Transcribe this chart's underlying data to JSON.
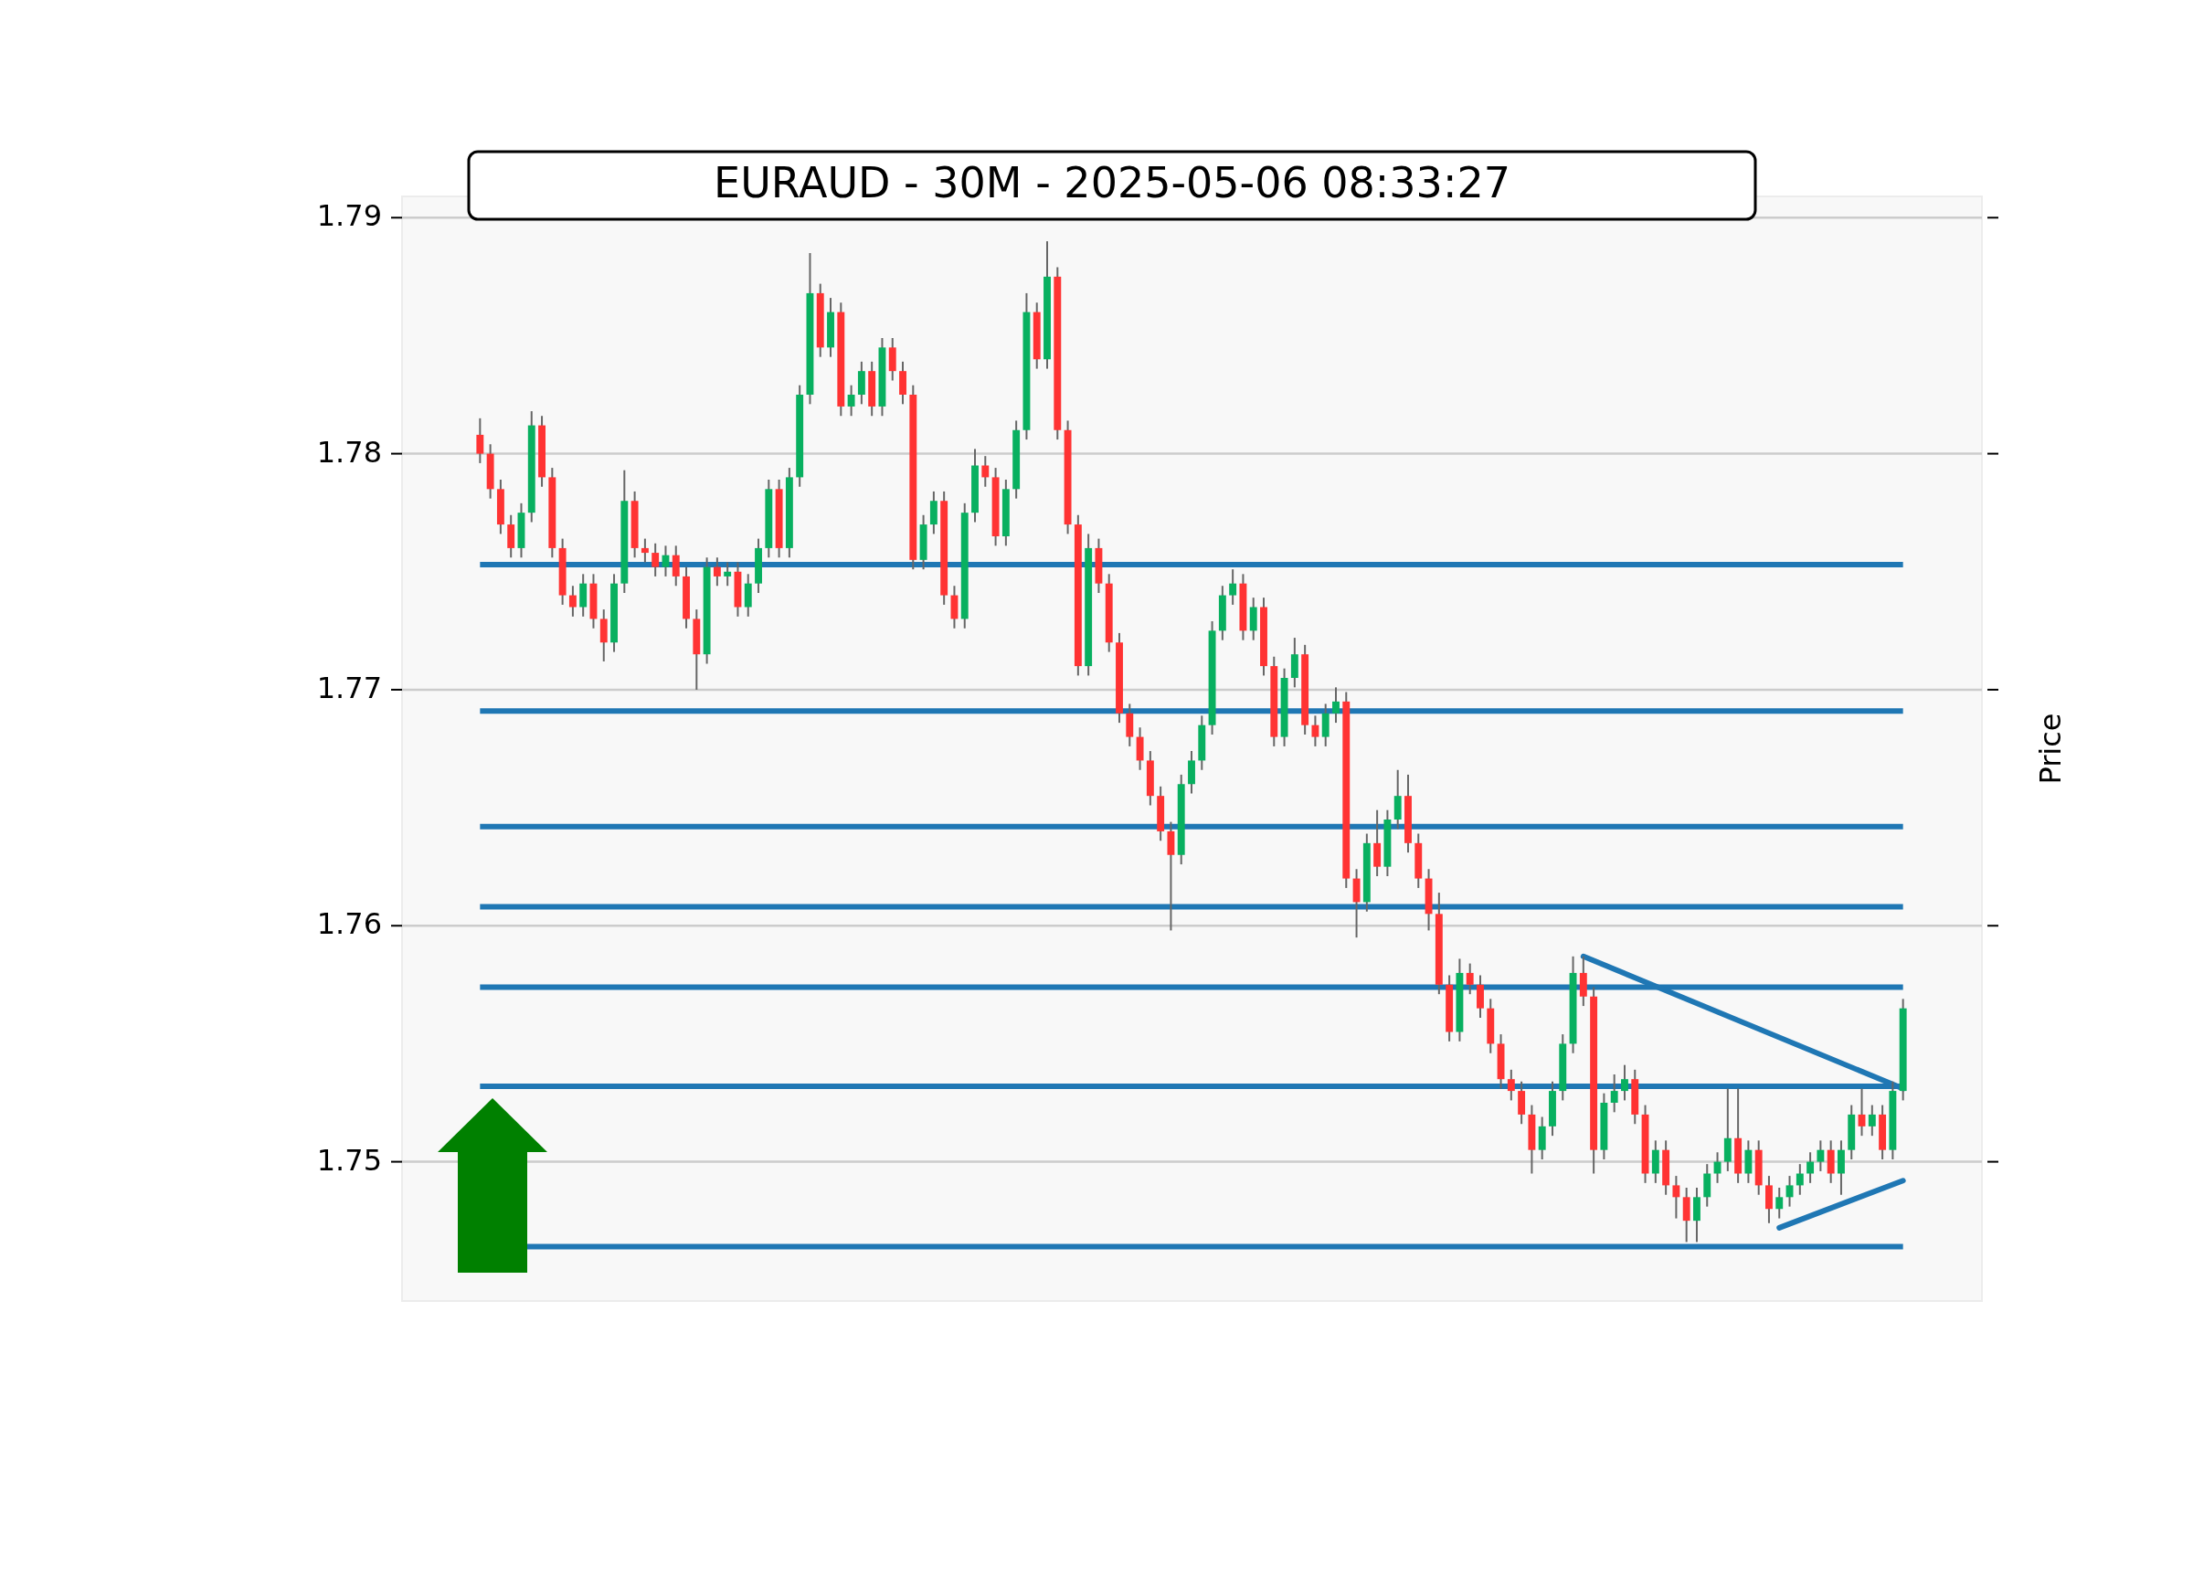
{
  "chart_data": {
    "type": "candlestick",
    "title": "EURAUD - 30M - 2025-05-06 08:33:27",
    "ylabel": "Price",
    "ylim": [
      1.7441,
      1.7909
    ],
    "yticks": [
      1.75,
      1.76,
      1.77,
      1.78,
      1.79
    ],
    "grid": "y",
    "categories": [
      null,
      null,
      null,
      null,
      null,
      null,
      null,
      null,
      null,
      null,
      null,
      null,
      null,
      null,
      null,
      null,
      null,
      null,
      null,
      null,
      null,
      null,
      null,
      null,
      null,
      null,
      null,
      null,
      null,
      null,
      null,
      null,
      null,
      null,
      null,
      null,
      null,
      null,
      null,
      null,
      null,
      null,
      null,
      null,
      null,
      null,
      null,
      null,
      null,
      null,
      null,
      null,
      null,
      null,
      null,
      null,
      null,
      null,
      null,
      null,
      null,
      null,
      null,
      null,
      null,
      null,
      null,
      null,
      null,
      null,
      null,
      null,
      null,
      null,
      null,
      null,
      null,
      null,
      null,
      null,
      null,
      null,
      null,
      null,
      null,
      null,
      null,
      null,
      null,
      null,
      null,
      null,
      null,
      null,
      null,
      null,
      null,
      null,
      null,
      null,
      null,
      null,
      null,
      null,
      null,
      null,
      null,
      null,
      null,
      null,
      null,
      null,
      null,
      null,
      null,
      null,
      null,
      null,
      null,
      null,
      null,
      null,
      null,
      null,
      null,
      null,
      null,
      null,
      null,
      null,
      null,
      null,
      null,
      null,
      null,
      null,
      null,
      null,
      null
    ],
    "ohlc": [
      [
        1.7808,
        1.7815,
        1.7796,
        1.78
      ],
      [
        1.78,
        1.7804,
        1.7781,
        1.7785
      ],
      [
        1.7785,
        1.7789,
        1.7766,
        1.777
      ],
      [
        1.777,
        1.7774,
        1.7756,
        1.776
      ],
      [
        1.776,
        1.7779,
        1.7756,
        1.7775
      ],
      [
        1.7775,
        1.7818,
        1.7771,
        1.7812
      ],
      [
        1.7812,
        1.7816,
        1.7786,
        1.779
      ],
      [
        1.779,
        1.7794,
        1.7756,
        1.776
      ],
      [
        1.776,
        1.7764,
        1.7736,
        1.774
      ],
      [
        1.774,
        1.7744,
        1.7731,
        1.7735
      ],
      [
        1.7735,
        1.7749,
        1.7731,
        1.7745
      ],
      [
        1.7745,
        1.7749,
        1.7726,
        1.773
      ],
      [
        1.773,
        1.7734,
        1.7712,
        1.772
      ],
      [
        1.772,
        1.7749,
        1.7716,
        1.7745
      ],
      [
        1.7745,
        1.7793,
        1.7741,
        1.778
      ],
      [
        1.778,
        1.7784,
        1.7756,
        1.776
      ],
      [
        1.776,
        1.7764,
        1.7754,
        1.7758
      ],
      [
        1.7758,
        1.7762,
        1.7748,
        1.7752
      ],
      [
        1.7752,
        1.7761,
        1.7748,
        1.7757
      ],
      [
        1.7757,
        1.7761,
        1.7744,
        1.7748
      ],
      [
        1.7748,
        1.7752,
        1.7726,
        1.773
      ],
      [
        1.773,
        1.7734,
        1.77,
        1.7715
      ],
      [
        1.7715,
        1.7756,
        1.7711,
        1.7752
      ],
      [
        1.7752,
        1.7756,
        1.7744,
        1.7748
      ],
      [
        1.7748,
        1.7754,
        1.7744,
        1.775
      ],
      [
        1.775,
        1.7754,
        1.7731,
        1.7735
      ],
      [
        1.7735,
        1.7749,
        1.7731,
        1.7745
      ],
      [
        1.7745,
        1.7764,
        1.7741,
        1.776
      ],
      [
        1.776,
        1.7789,
        1.7756,
        1.7785
      ],
      [
        1.7785,
        1.7789,
        1.7756,
        1.776
      ],
      [
        1.776,
        1.7794,
        1.7756,
        1.779
      ],
      [
        1.779,
        1.7829,
        1.7786,
        1.7825
      ],
      [
        1.7825,
        1.7885,
        1.7821,
        1.7868
      ],
      [
        1.7868,
        1.7872,
        1.7841,
        1.7845
      ],
      [
        1.7845,
        1.7866,
        1.7841,
        1.786
      ],
      [
        1.786,
        1.7864,
        1.7816,
        1.782
      ],
      [
        1.782,
        1.7829,
        1.7816,
        1.7825
      ],
      [
        1.7825,
        1.7839,
        1.7821,
        1.7835
      ],
      [
        1.7835,
        1.7839,
        1.7816,
        1.782
      ],
      [
        1.782,
        1.7849,
        1.7816,
        1.7845
      ],
      [
        1.7845,
        1.7849,
        1.7831,
        1.7835
      ],
      [
        1.7835,
        1.7839,
        1.7821,
        1.7825
      ],
      [
        1.7825,
        1.7829,
        1.7751,
        1.7755
      ],
      [
        1.7755,
        1.7774,
        1.7751,
        1.777
      ],
      [
        1.777,
        1.7784,
        1.7766,
        1.778
      ],
      [
        1.778,
        1.7784,
        1.7736,
        1.774
      ],
      [
        1.774,
        1.7744,
        1.7726,
        1.773
      ],
      [
        1.773,
        1.7779,
        1.7726,
        1.7775
      ],
      [
        1.7775,
        1.7802,
        1.7771,
        1.7795
      ],
      [
        1.7795,
        1.7799,
        1.7786,
        1.779
      ],
      [
        1.779,
        1.7794,
        1.7761,
        1.7765
      ],
      [
        1.7765,
        1.7789,
        1.7761,
        1.7785
      ],
      [
        1.7785,
        1.7814,
        1.7781,
        1.781
      ],
      [
        1.781,
        1.7868,
        1.7806,
        1.786
      ],
      [
        1.786,
        1.7864,
        1.7836,
        1.784
      ],
      [
        1.784,
        1.789,
        1.7836,
        1.7875
      ],
      [
        1.7875,
        1.7879,
        1.7806,
        1.781
      ],
      [
        1.781,
        1.7814,
        1.7766,
        1.777
      ],
      [
        1.777,
        1.7774,
        1.7706,
        1.771
      ],
      [
        1.771,
        1.7766,
        1.7706,
        1.776
      ],
      [
        1.776,
        1.7764,
        1.7741,
        1.7745
      ],
      [
        1.7745,
        1.7749,
        1.7716,
        1.772
      ],
      [
        1.772,
        1.7724,
        1.7686,
        1.769
      ],
      [
        1.769,
        1.7694,
        1.7676,
        1.768
      ],
      [
        1.768,
        1.7684,
        1.7666,
        1.767
      ],
      [
        1.767,
        1.7674,
        1.7651,
        1.7655
      ],
      [
        1.7655,
        1.7659,
        1.7636,
        1.764
      ],
      [
        1.764,
        1.7644,
        1.7598,
        1.763
      ],
      [
        1.763,
        1.7664,
        1.7626,
        1.766
      ],
      [
        1.766,
        1.7674,
        1.7656,
        1.767
      ],
      [
        1.767,
        1.7689,
        1.7666,
        1.7685
      ],
      [
        1.7685,
        1.7729,
        1.7681,
        1.7725
      ],
      [
        1.7725,
        1.7744,
        1.7721,
        1.774
      ],
      [
        1.774,
        1.7751,
        1.7736,
        1.7745
      ],
      [
        1.7745,
        1.7749,
        1.7721,
        1.7725
      ],
      [
        1.7725,
        1.7739,
        1.7721,
        1.7735
      ],
      [
        1.7735,
        1.7739,
        1.7706,
        1.771
      ],
      [
        1.771,
        1.7714,
        1.7676,
        1.768
      ],
      [
        1.768,
        1.7709,
        1.7676,
        1.7705
      ],
      [
        1.7705,
        1.7722,
        1.7701,
        1.7715
      ],
      [
        1.7715,
        1.7719,
        1.7681,
        1.7685
      ],
      [
        1.7685,
        1.7689,
        1.7676,
        1.768
      ],
      [
        1.768,
        1.7694,
        1.7676,
        1.769
      ],
      [
        1.769,
        1.7701,
        1.7686,
        1.7695
      ],
      [
        1.7695,
        1.7699,
        1.7616,
        1.762
      ],
      [
        1.762,
        1.7624,
        1.7595,
        1.761
      ],
      [
        1.761,
        1.7639,
        1.7606,
        1.7635
      ],
      [
        1.7635,
        1.7649,
        1.7621,
        1.7625
      ],
      [
        1.7625,
        1.7649,
        1.7621,
        1.7645
      ],
      [
        1.7645,
        1.7666,
        1.7641,
        1.7655
      ],
      [
        1.7655,
        1.7664,
        1.7631,
        1.7635
      ],
      [
        1.7635,
        1.7639,
        1.7616,
        1.762
      ],
      [
        1.762,
        1.7624,
        1.7598,
        1.7605
      ],
      [
        1.7605,
        1.7614,
        1.7571,
        1.7575
      ],
      [
        1.7575,
        1.7579,
        1.7551,
        1.7555
      ],
      [
        1.7555,
        1.7586,
        1.7551,
        1.758
      ],
      [
        1.758,
        1.7584,
        1.7571,
        1.7575
      ],
      [
        1.7575,
        1.7579,
        1.7561,
        1.7565
      ],
      [
        1.7565,
        1.7569,
        1.7546,
        1.755
      ],
      [
        1.755,
        1.7554,
        1.7531,
        1.7535
      ],
      [
        1.7535,
        1.7539,
        1.7526,
        1.753
      ],
      [
        1.753,
        1.7534,
        1.7516,
        1.752
      ],
      [
        1.752,
        1.7524,
        1.7495,
        1.7505
      ],
      [
        1.7505,
        1.7519,
        1.7501,
        1.7515
      ],
      [
        1.7515,
        1.7534,
        1.7511,
        1.753
      ],
      [
        1.753,
        1.7554,
        1.7526,
        1.755
      ],
      [
        1.755,
        1.7587,
        1.7546,
        1.758
      ],
      [
        1.758,
        1.7587,
        1.7566,
        1.757
      ],
      [
        1.757,
        1.7574,
        1.7495,
        1.7505
      ],
      [
        1.7505,
        1.7529,
        1.7501,
        1.7525
      ],
      [
        1.7525,
        1.7537,
        1.7521,
        1.753
      ],
      [
        1.753,
        1.7541,
        1.7526,
        1.7535
      ],
      [
        1.7535,
        1.7539,
        1.7516,
        1.752
      ],
      [
        1.752,
        1.7524,
        1.7491,
        1.7495
      ],
      [
        1.7495,
        1.7509,
        1.7491,
        1.7505
      ],
      [
        1.7505,
        1.7509,
        1.7486,
        1.749
      ],
      [
        1.749,
        1.7494,
        1.7476,
        1.7485
      ],
      [
        1.7485,
        1.7489,
        1.7466,
        1.7475
      ],
      [
        1.7475,
        1.7489,
        1.7466,
        1.7485
      ],
      [
        1.7485,
        1.7499,
        1.7481,
        1.7495
      ],
      [
        1.7495,
        1.7504,
        1.7491,
        1.75
      ],
      [
        1.75,
        1.7531,
        1.7496,
        1.751
      ],
      [
        1.751,
        1.7531,
        1.7491,
        1.7495
      ],
      [
        1.7495,
        1.7509,
        1.7491,
        1.7505
      ],
      [
        1.7505,
        1.7509,
        1.7486,
        1.749
      ],
      [
        1.749,
        1.7494,
        1.7474,
        1.748
      ],
      [
        1.748,
        1.7489,
        1.7476,
        1.7485
      ],
      [
        1.7485,
        1.7494,
        1.7481,
        1.749
      ],
      [
        1.749,
        1.7499,
        1.7486,
        1.7495
      ],
      [
        1.7495,
        1.7504,
        1.7491,
        1.75
      ],
      [
        1.75,
        1.7509,
        1.7496,
        1.7505
      ],
      [
        1.7505,
        1.7509,
        1.7491,
        1.7495
      ],
      [
        1.7495,
        1.7509,
        1.7486,
        1.7505
      ],
      [
        1.7505,
        1.7524,
        1.7501,
        1.752
      ],
      [
        1.752,
        1.7531,
        1.7511,
        1.7515
      ],
      [
        1.7515,
        1.7524,
        1.7511,
        1.752
      ],
      [
        1.752,
        1.7524,
        1.7501,
        1.7505
      ],
      [
        1.7505,
        1.7534,
        1.7501,
        1.753
      ],
      [
        1.753,
        1.7569,
        1.7526,
        1.7565
      ]
    ],
    "series": [
      {
        "type": "line",
        "color": "#1f77b4",
        "values": [
          null,
          null,
          null,
          null,
          null,
          null,
          null,
          null,
          null,
          null,
          null,
          null,
          null,
          null,
          null,
          null,
          null,
          null,
          null,
          null,
          null,
          null,
          null,
          null,
          null,
          null,
          null,
          null,
          null,
          null,
          null,
          null,
          null,
          null,
          null,
          null,
          null,
          null,
          null,
          null,
          null,
          null,
          null,
          null,
          null,
          null,
          null,
          null,
          null,
          null,
          null,
          null,
          null,
          null,
          null,
          null,
          null,
          null,
          null,
          null,
          null,
          null,
          null,
          null,
          null,
          null,
          null,
          null,
          null,
          null,
          null,
          null,
          null,
          null,
          null,
          null,
          null,
          null,
          null,
          null,
          null,
          null,
          null,
          null,
          null,
          null,
          null,
          null,
          null,
          null,
          null,
          null,
          null,
          null,
          null,
          null,
          null,
          null,
          null,
          null,
          null,
          null,
          null,
          null,
          null,
          null,
          null,
          1.7587,
          null,
          null,
          null,
          null,
          null,
          null,
          null,
          null,
          null,
          null,
          null,
          null,
          null,
          null,
          null,
          null,
          null,
          null,
          null,
          null,
          null,
          null,
          null,
          null,
          null,
          null,
          null,
          null,
          null,
          null,
          1.7531
        ]
      },
      {
        "type": "line",
        "color": "#1f77b4",
        "values": [
          null,
          null,
          null,
          null,
          null,
          null,
          null,
          null,
          null,
          null,
          null,
          null,
          null,
          null,
          null,
          null,
          null,
          null,
          null,
          null,
          null,
          null,
          null,
          null,
          null,
          null,
          null,
          null,
          null,
          null,
          null,
          null,
          null,
          null,
          null,
          null,
          null,
          null,
          null,
          null,
          null,
          null,
          null,
          null,
          null,
          null,
          null,
          null,
          null,
          null,
          null,
          null,
          null,
          null,
          null,
          null,
          null,
          null,
          null,
          null,
          null,
          null,
          null,
          null,
          null,
          null,
          null,
          null,
          null,
          null,
          null,
          null,
          null,
          null,
          null,
          null,
          null,
          null,
          null,
          null,
          null,
          null,
          null,
          null,
          null,
          null,
          null,
          null,
          null,
          null,
          null,
          null,
          null,
          null,
          null,
          null,
          null,
          null,
          null,
          null,
          null,
          null,
          null,
          null,
          null,
          null,
          null,
          null,
          null,
          null,
          null,
          null,
          null,
          null,
          null,
          null,
          null,
          null,
          null,
          null,
          null,
          null,
          null,
          null,
          null,
          null,
          1.7472,
          null,
          null,
          null,
          null,
          null,
          null,
          null,
          null,
          null,
          null,
          null,
          1.7492
        ]
      }
    ],
    "ref_lines": [
      {
        "axis": "y",
        "value": 1.7753,
        "color": "#1f77b4"
      },
      {
        "axis": "y",
        "value": 1.7691,
        "color": "#1f77b4"
      },
      {
        "axis": "y",
        "value": 1.7642,
        "color": "#1f77b4"
      },
      {
        "axis": "y",
        "value": 1.7608,
        "color": "#1f77b4"
      },
      {
        "axis": "y",
        "value": 1.7574,
        "color": "#1f77b4"
      },
      {
        "axis": "y",
        "value": 1.7532,
        "color": "#1f77b4"
      },
      {
        "axis": "y",
        "value": 1.7464,
        "color": "#1f77b4"
      }
    ]
  }
}
